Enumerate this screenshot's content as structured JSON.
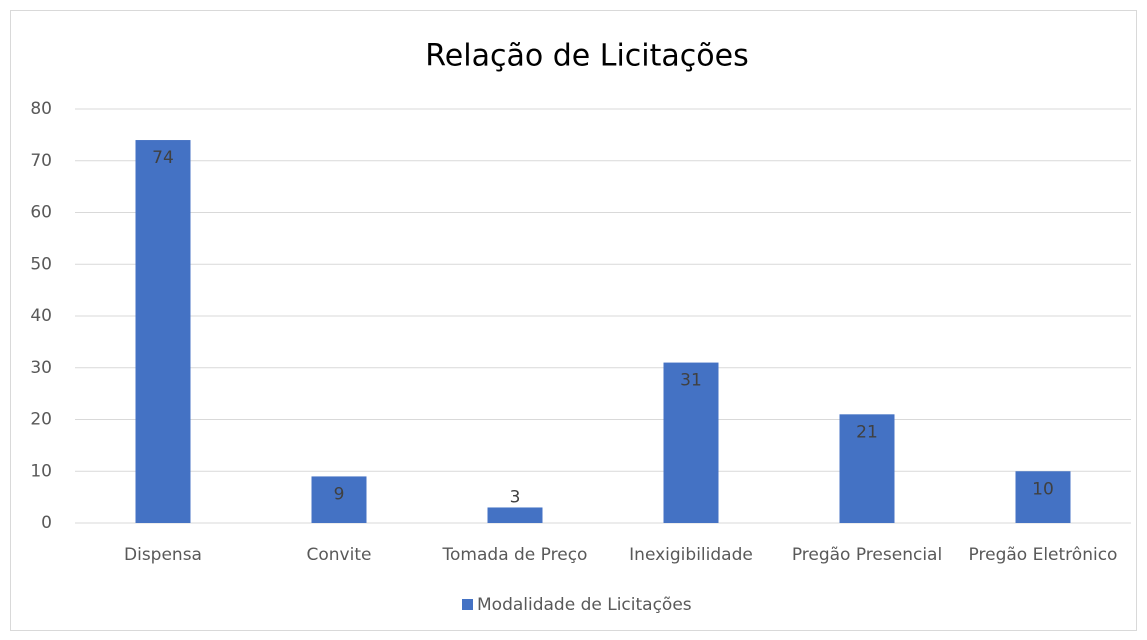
{
  "chart_data": {
    "type": "bar",
    "title": "Relação de Licitações",
    "categories": [
      "Dispensa",
      "Convite",
      "Tomada de Preço",
      "Inexigibilidade",
      "Pregão Presencial",
      "Pregão Eletrônico"
    ],
    "series": [
      {
        "name": "Modalidade de Licitações",
        "color": "#4472c4",
        "values": [
          74,
          9,
          3,
          31,
          21,
          10
        ]
      }
    ],
    "ylim": [
      0,
      80
    ],
    "yticks": [
      0,
      10,
      20,
      30,
      40,
      50,
      60,
      70,
      80
    ],
    "grid": true,
    "legend": "bottom"
  }
}
